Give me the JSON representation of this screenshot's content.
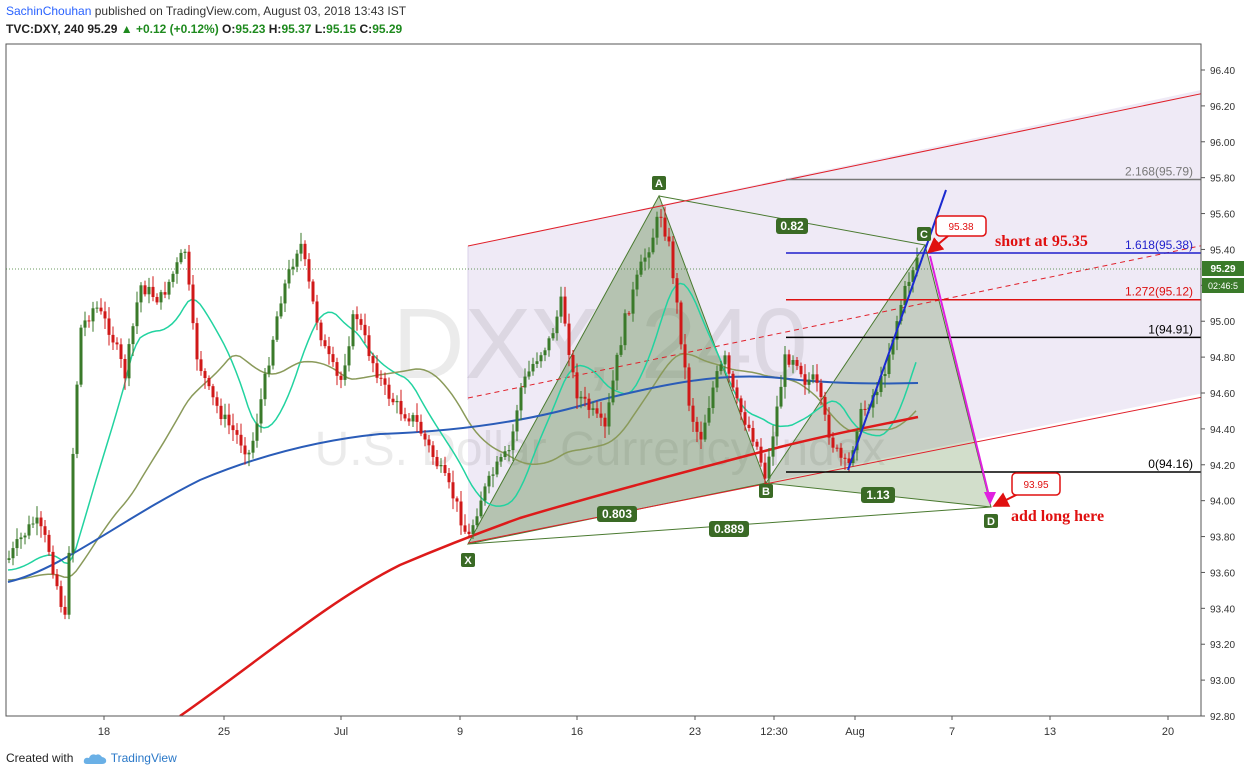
{
  "header": {
    "author": "SachinChouhan",
    "published_text": " published on TradingView.com, August 03, 2018 13:43 IST",
    "symbol": "TVC:DXY, 240",
    "last": "95.29",
    "change": "+0.12 (+0.12%)",
    "o_label": "O:",
    "o": "95.23",
    "h_label": "H:",
    "h": "95.37",
    "l_label": "L:",
    "l": "95.15",
    "c_label": "C:",
    "c": "95.29"
  },
  "footer": {
    "created_with": "Created with",
    "brand": "TradingView"
  },
  "watermark": {
    "big": "DXY, 240",
    "small": "U.S. Dollar Currency Index"
  },
  "price_scale": {
    "labels": [
      "96.40",
      "96.20",
      "96.00",
      "95.80",
      "95.60",
      "95.40",
      "95.20",
      "95.00",
      "94.80",
      "94.60",
      "94.40",
      "94.20",
      "94.00",
      "93.80",
      "93.60",
      "93.40",
      "93.20",
      "93.00",
      "92.80"
    ],
    "last_price": "95.29",
    "countdown": "02:46:5"
  },
  "time_axis": [
    "18",
    "25",
    "Jul",
    "9",
    "16",
    "23",
    "12:30",
    "Aug",
    "7",
    "13",
    "20"
  ],
  "pattern": {
    "points": {
      "X": "X",
      "A": "A",
      "B": "B",
      "C": "C",
      "D": "D"
    },
    "ratios": {
      "xb": "0.803",
      "ac": "0.82",
      "bd": "1.13",
      "xd": "0.889"
    }
  },
  "fib_levels": [
    {
      "label": "2.168(95.79)",
      "price": 95.79,
      "color": "#787878"
    },
    {
      "label": "1.618(95.38)",
      "price": 95.38,
      "color": "#1e1ecc"
    },
    {
      "label": "1.272(95.12)",
      "price": 95.12,
      "color": "#dd1111"
    },
    {
      "label": "1(94.91)",
      "price": 94.91,
      "color": "#000000"
    },
    {
      "label": "0(94.16)",
      "price": 94.16,
      "color": "#000000"
    }
  ],
  "annotations": {
    "short_text": "short at 95.35",
    "long_text": "add long here",
    "callout_short": "95.38",
    "callout_long": "93.95"
  },
  "colors": {
    "up": "#3a7a2a",
    "down": "#d01818",
    "ema_cyan": "#22d3a0",
    "ema_olive": "#8a9a5a",
    "ema_blue": "#2a5cb8",
    "ema_red": "#dd1a1a",
    "channel": "#e0202a",
    "pattern_fill": "#4a7a30"
  },
  "chart_data": {
    "type": "candlestick",
    "series_name": "TVC:DXY, 240",
    "ylim": [
      92.8,
      96.4
    ],
    "harmonic_points": [
      {
        "name": "X",
        "date": "Jul 9",
        "price": 93.73
      },
      {
        "name": "A",
        "date": "Jul 19",
        "price": 95.67
      },
      {
        "name": "B",
        "date": "Jul 31",
        "price": 94.11
      },
      {
        "name": "C",
        "date": "Aug 3",
        "price": 95.37
      },
      {
        "name": "D",
        "date": "Aug 8",
        "price": 93.96
      }
    ],
    "ratios": {
      "XB": 0.803,
      "AC": 0.82,
      "BD": 1.13,
      "XD": 0.889
    },
    "levels": {
      "short": 95.38,
      "long": 93.95
    }
  }
}
